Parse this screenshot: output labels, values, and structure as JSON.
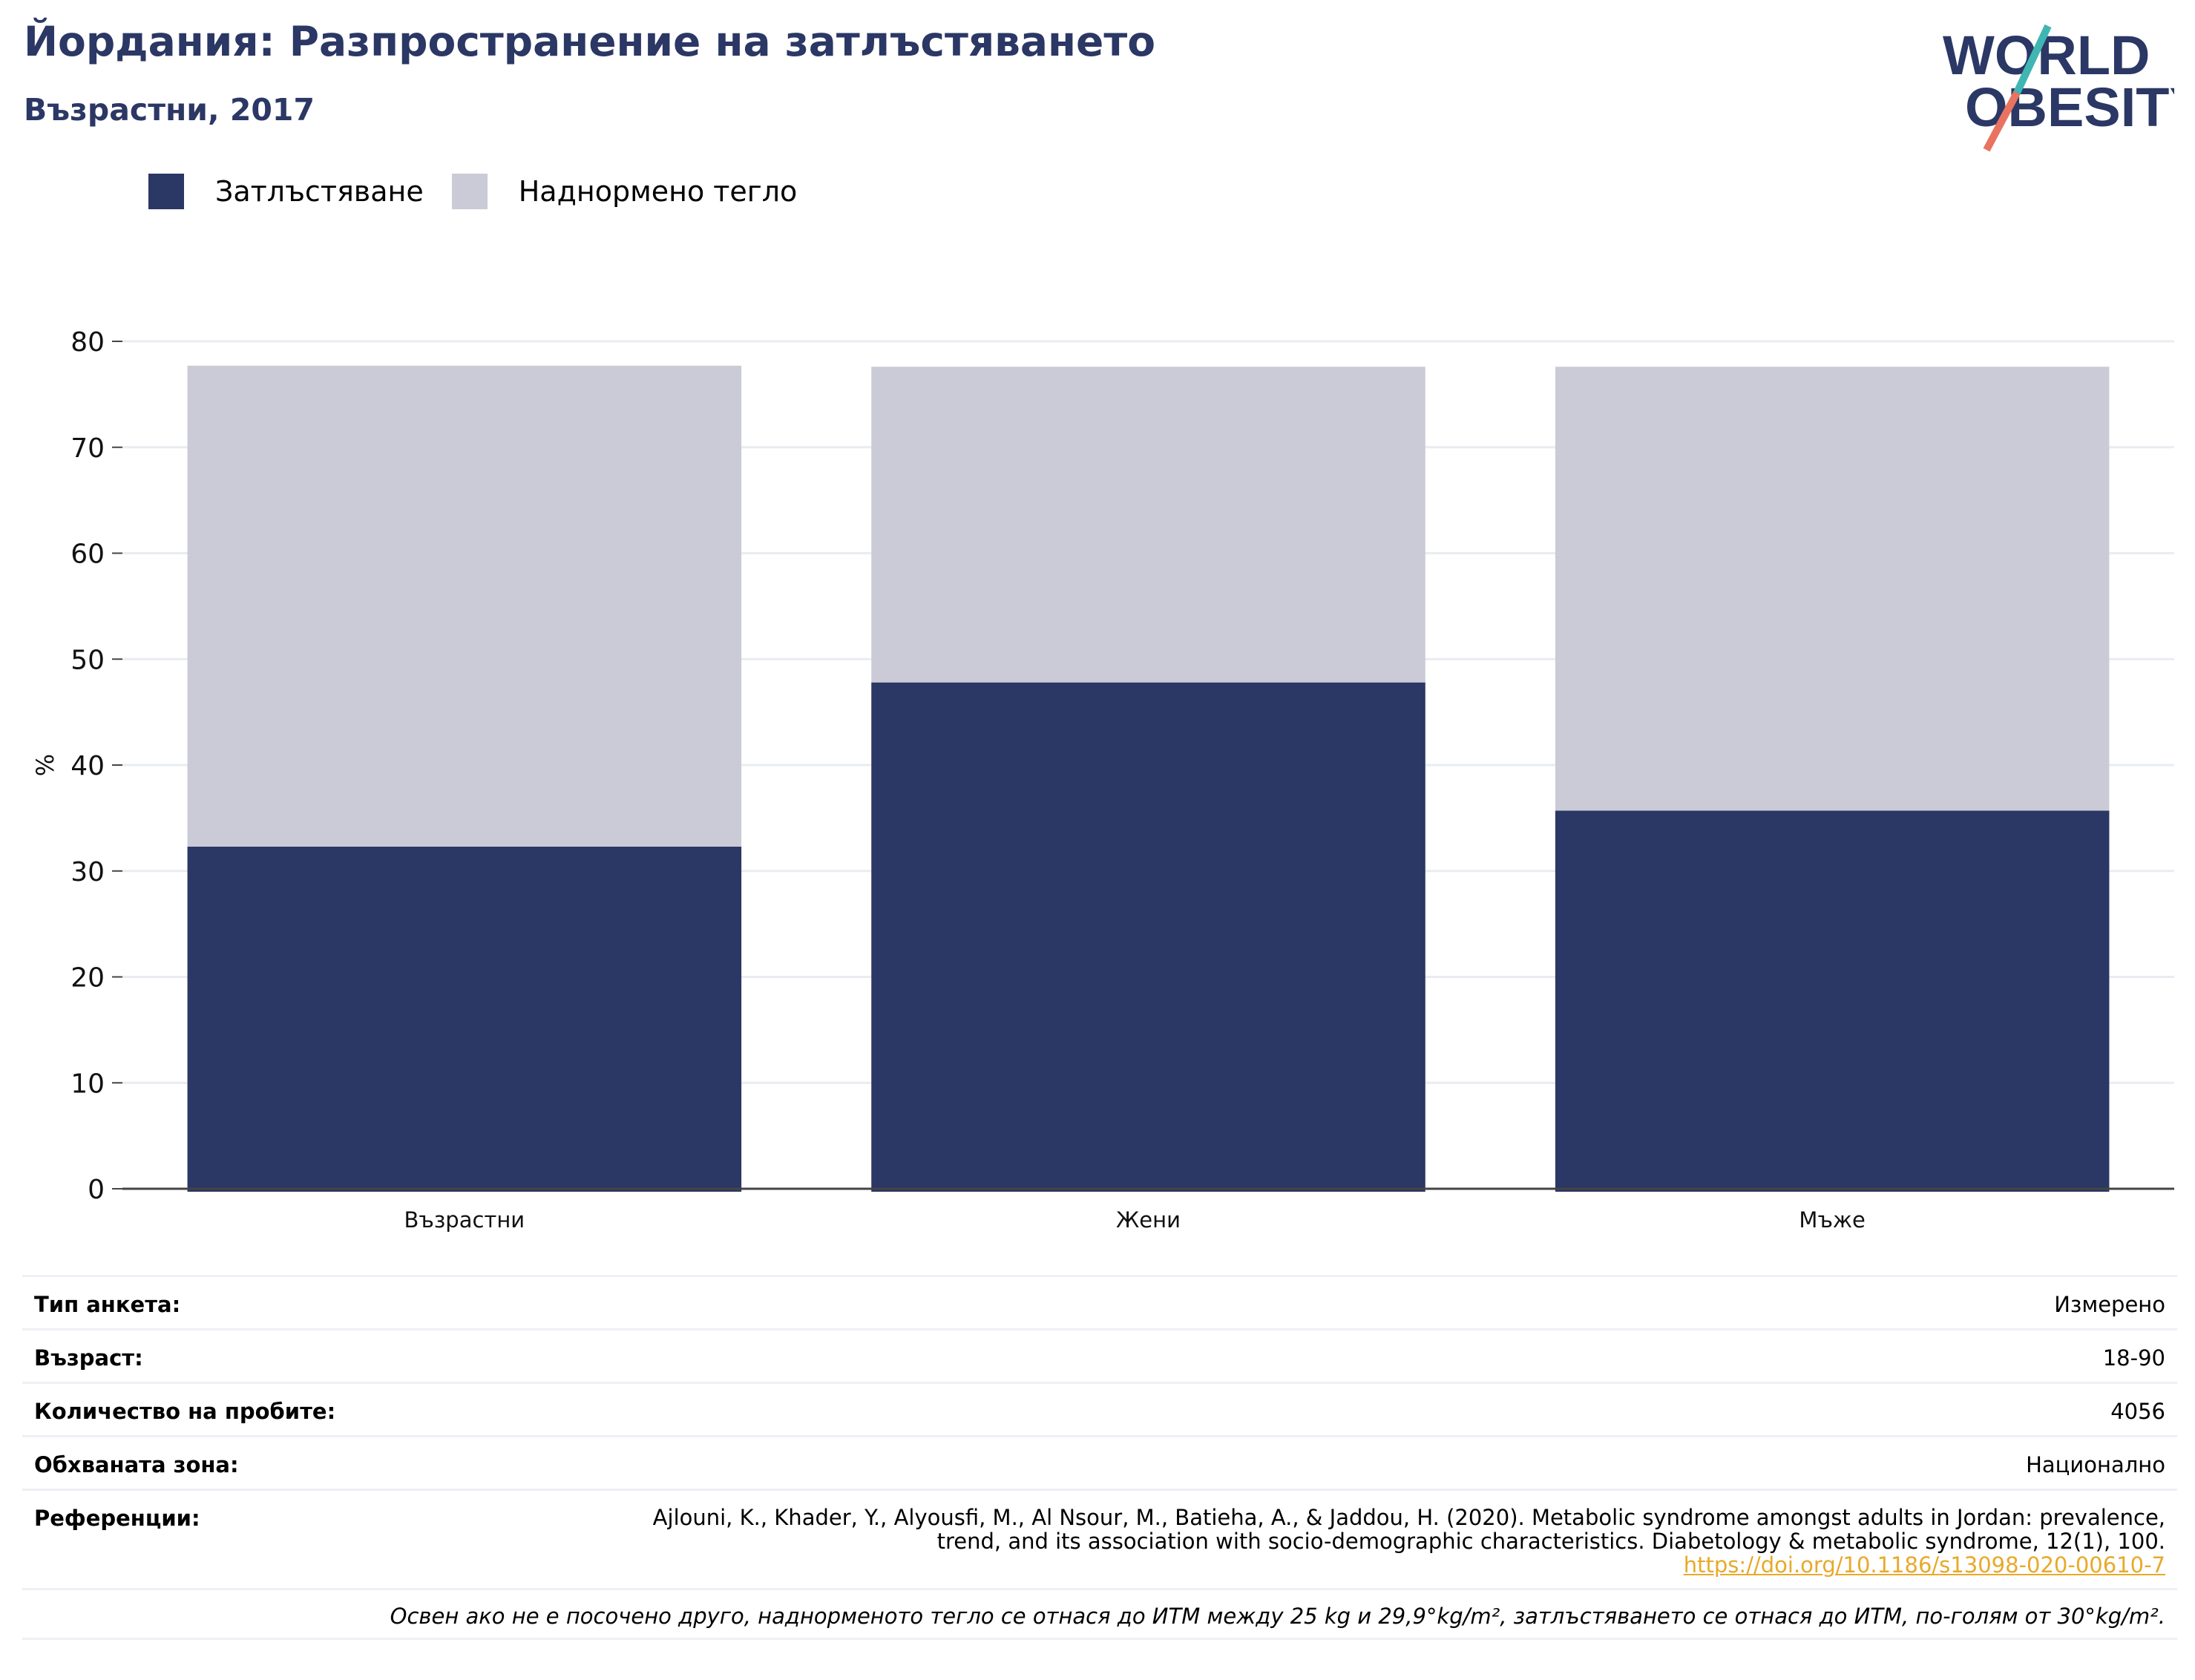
{
  "title": "Йордания: Разпространение на затлъстяването",
  "subtitle": "Възрастни, 2017",
  "logo": {
    "line1": "WORLD",
    "line2": "OBESITY"
  },
  "colors": {
    "obesity": "#2b3764",
    "overweight": "#cacbd7",
    "grid": "#e9ecf1",
    "link": "#e8a92a",
    "logo_teal": "#3fb6b3",
    "logo_coral": "#e8745f"
  },
  "chart_data": {
    "type": "bar",
    "stacked": true,
    "categories": [
      "Възрастни",
      "Жени",
      "Мъже"
    ],
    "series": [
      {
        "name": "Затлъстяване",
        "values": [
          32.3,
          47.8,
          35.7
        ]
      },
      {
        "name": "Наднормено тегло",
        "values": [
          45.4,
          29.8,
          41.9
        ]
      }
    ],
    "ylabel": "%",
    "ylim": [
      0,
      80
    ],
    "yticks": [
      0,
      10,
      20,
      30,
      40,
      50,
      60,
      70,
      80
    ],
    "grid": true,
    "legend": "top-left"
  },
  "info": {
    "survey_type": {
      "label": "Тип анкета:",
      "value": "Измерено"
    },
    "age": {
      "label": "Възраст:",
      "value": "18-90"
    },
    "sample_size": {
      "label": "Количество на пробите:",
      "value": "4056"
    },
    "coverage": {
      "label": "Обхваната зона:",
      "value": "Национално"
    },
    "references": {
      "label": "Референции:",
      "line1": "Ajlouni, K., Khader, Y., Alyousfi, M., Al Nsour, M., Batieha, A., & Jaddou, H. (2020). Metabolic syndrome amongst adults in Jordan: prevalence,",
      "line2": "trend, and its association with socio-demographic characteristics. Diabetology & metabolic syndrome, 12(1), 100.",
      "link": "https://doi.org/10.1186/s13098-020-00610-7"
    },
    "note": "Освен ако не е посочено друго, наднорменото тегло се отнася до ИТМ между 25 kg и 29,9°kg/m², затлъстяването се отнася до ИТМ, по-голям от 30°kg/m²."
  }
}
